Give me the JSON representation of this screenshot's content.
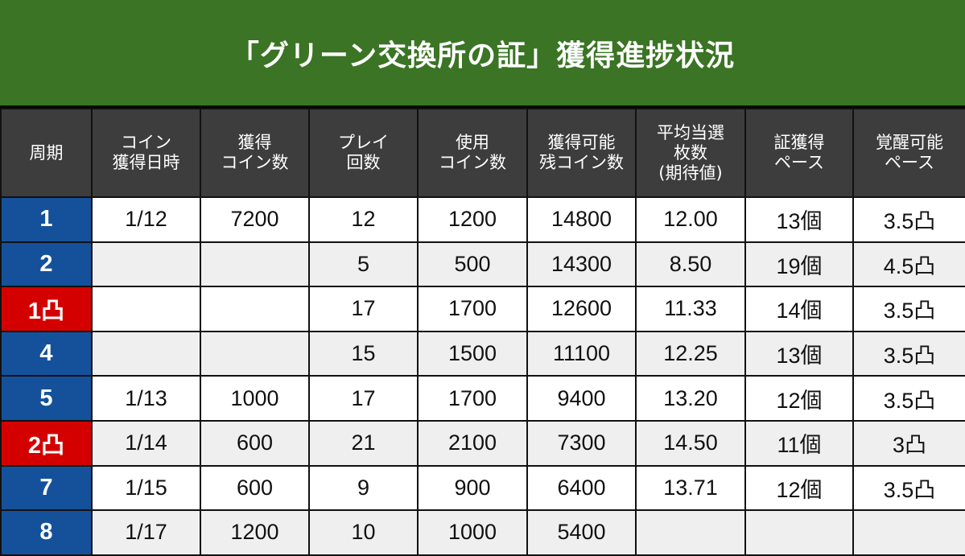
{
  "title": "「グリーン交換所の証」獲得進捗状況",
  "colors": {
    "title_bg": "#3a7424",
    "header_bg": "#3d3d3d",
    "period_blue": "#15519b",
    "period_red": "#d40000"
  },
  "headers": [
    [
      "周期"
    ],
    [
      "コイン",
      "獲得日時"
    ],
    [
      "獲得",
      "コイン数"
    ],
    [
      "プレイ",
      "回数"
    ],
    [
      "使用",
      "コイン数"
    ],
    [
      "獲得可能",
      "残コイン数"
    ],
    [
      "平均当選",
      "枚数",
      "(期待値)"
    ],
    [
      "証獲得",
      "ペース"
    ],
    [
      "覚醒可能",
      "ペース"
    ]
  ],
  "rows": [
    {
      "period": "1",
      "highlight": "blue",
      "cells": [
        "1/12",
        "7200",
        "12",
        "1200",
        "14800",
        "12.00",
        "13個",
        "3.5凸"
      ]
    },
    {
      "period": "2",
      "highlight": "blue",
      "cells": [
        "",
        "",
        "5",
        "500",
        "14300",
        "8.50",
        "19個",
        "4.5凸"
      ]
    },
    {
      "period": "1凸",
      "highlight": "red",
      "cells": [
        "",
        "",
        "17",
        "1700",
        "12600",
        "11.33",
        "14個",
        "3.5凸"
      ]
    },
    {
      "period": "4",
      "highlight": "blue",
      "cells": [
        "",
        "",
        "15",
        "1500",
        "11100",
        "12.25",
        "13個",
        "3.5凸"
      ]
    },
    {
      "period": "5",
      "highlight": "blue",
      "cells": [
        "1/13",
        "1000",
        "17",
        "1700",
        "9400",
        "13.20",
        "12個",
        "3.5凸"
      ]
    },
    {
      "period": "2凸",
      "highlight": "red",
      "cells": [
        "1/14",
        "600",
        "21",
        "2100",
        "7300",
        "14.50",
        "11個",
        "3凸"
      ]
    },
    {
      "period": "7",
      "highlight": "blue",
      "cells": [
        "1/15",
        "600",
        "9",
        "900",
        "6400",
        "13.71",
        "12個",
        "3.5凸"
      ]
    },
    {
      "period": "8",
      "highlight": "blue",
      "cells": [
        "1/17",
        "1200",
        "10",
        "1000",
        "5400",
        "",
        "",
        ""
      ]
    }
  ]
}
